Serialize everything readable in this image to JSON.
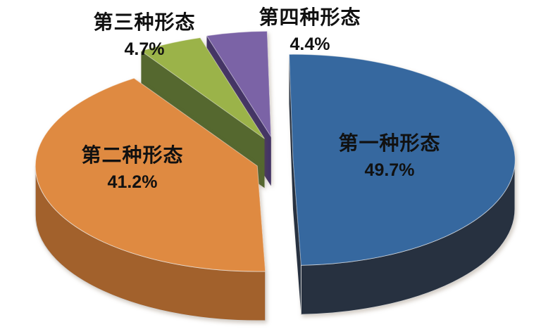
{
  "chart_data": {
    "type": "pie",
    "style": "3d-exploded-pie",
    "title": "",
    "legend_position": "none",
    "labels_on_chart": true,
    "unit": "%",
    "rotation": "clockwise-from-top",
    "background": "#ffffff",
    "label_text_color": "#111111",
    "categories": [
      "第一种形态",
      "第二种形态",
      "第三种形态",
      "第四种形态"
    ],
    "values": [
      49.7,
      41.2,
      4.7,
      4.4
    ],
    "slices": [
      {
        "label": "第一种形态",
        "value": 49.7,
        "pct_label": "49.7%",
        "color": "#36689F",
        "side_color": "#273140",
        "label_placement": "inside"
      },
      {
        "label": "第二种形态",
        "value": 41.2,
        "pct_label": "41.2%",
        "color": "#DF8A41",
        "side_color": "#A2612C",
        "label_placement": "inside"
      },
      {
        "label": "第三种形态",
        "value": 4.7,
        "pct_label": "4.7%",
        "color": "#9BB349",
        "side_color": "#55682F",
        "label_placement": "outside-top"
      },
      {
        "label": "第四种形态",
        "value": 4.4,
        "pct_label": "4.4%",
        "color": "#7B63A6",
        "side_color": "#443566",
        "label_placement": "outside-top"
      }
    ]
  }
}
